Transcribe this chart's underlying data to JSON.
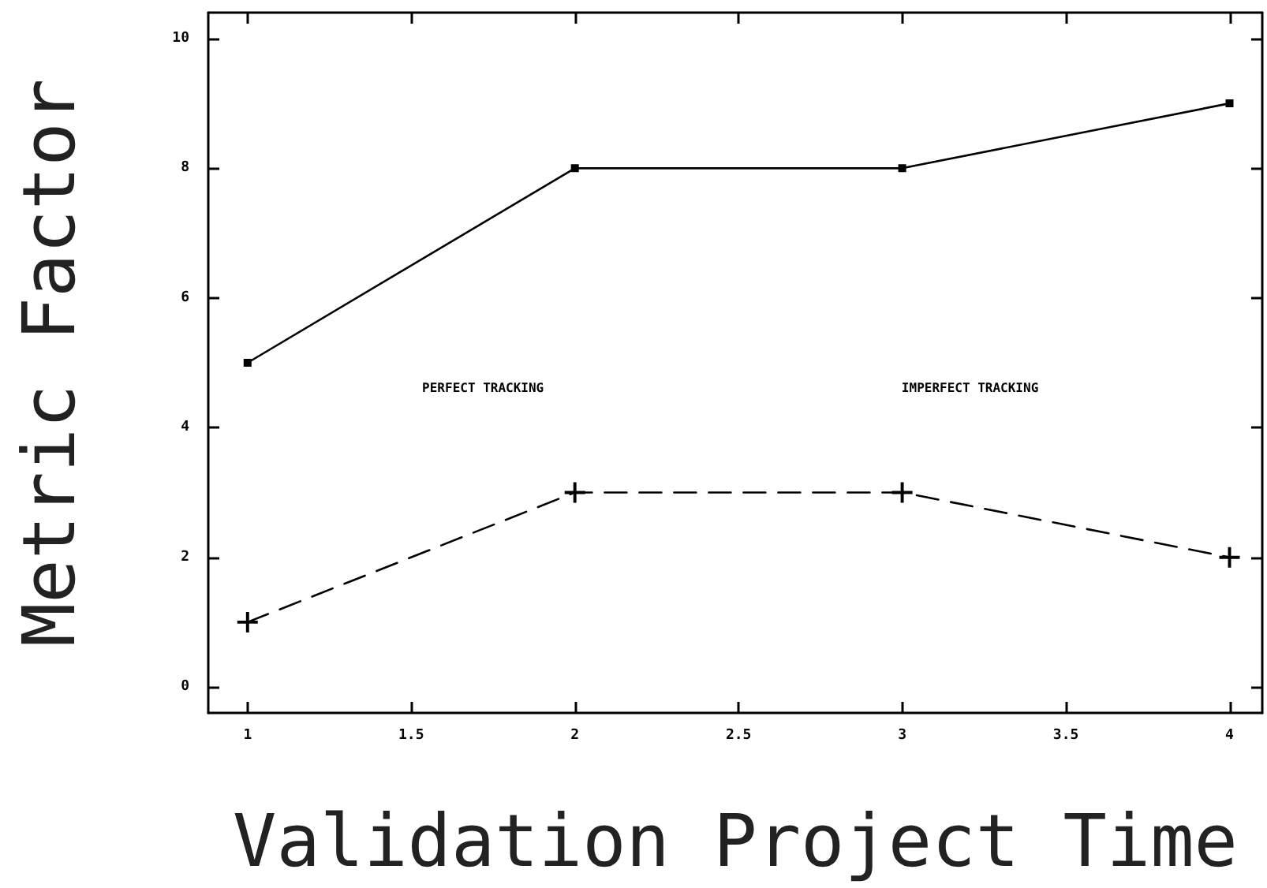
{
  "chart_data": {
    "type": "line",
    "xlabel": "Validation Project Time",
    "ylabel": "Metric Factor",
    "x": [
      1,
      2,
      3,
      4
    ],
    "series": [
      {
        "color": "#000000",
        "values": [
          5,
          8,
          8,
          9
        ],
        "marker": "square",
        "line_style": "solid"
      },
      {
        "color": "#000000",
        "values": [
          1,
          3,
          3,
          2
        ],
        "marker": "cross",
        "line_style": "dashed"
      }
    ],
    "xlim": [
      0.88,
      4.1
    ],
    "xticks": [
      1,
      1.5,
      2,
      2.5,
      3,
      3.5,
      4
    ],
    "ylim": [
      -0.4,
      10.4
    ],
    "yticks": [
      0,
      2,
      4,
      6,
      8,
      10
    ],
    "annotations": [
      "PERFECT TRACKING",
      "IMPERFECT TRACKING"
    ],
    "grid": false
  }
}
